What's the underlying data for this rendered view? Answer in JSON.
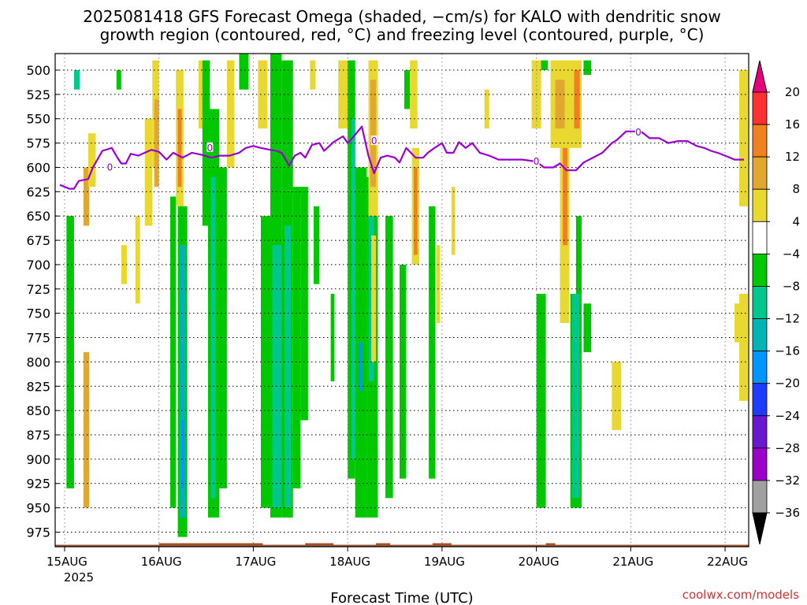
{
  "chart_data": {
    "type": "heatmap",
    "title_line1": "2025081418 GFS Forecast Omega (shaded, −cm/s) for KALO with dendritic snow",
    "title_line2": "growth region (contoured, red, °C) and freezing level (contoured, purple, °C)",
    "xlabel": "Forecast Time (UTC)",
    "credit": "coolwx.com/models",
    "year_label": "2025",
    "y_ticks": [
      "500",
      "525",
      "550",
      "575",
      "600",
      "625",
      "650",
      "675",
      "700",
      "725",
      "750",
      "775",
      "800",
      "825",
      "850",
      "875",
      "900",
      "925",
      "950",
      "975"
    ],
    "y_values": [
      500,
      525,
      550,
      575,
      600,
      625,
      650,
      675,
      700,
      725,
      750,
      775,
      800,
      825,
      850,
      875,
      900,
      925,
      950,
      975
    ],
    "ylim": [
      483,
      990
    ],
    "y_reversed": true,
    "xlim": [
      -0.1,
      7.25
    ],
    "x_ticks": [
      {
        "label": "15AUG",
        "value": 0
      },
      {
        "label": "16AUG",
        "value": 1
      },
      {
        "label": "17AUG",
        "value": 2
      },
      {
        "label": "18AUG",
        "value": 3
      },
      {
        "label": "19AUG",
        "value": 4
      },
      {
        "label": "20AUG",
        "value": 5
      },
      {
        "label": "21AUG",
        "value": 6
      },
      {
        "label": "22AUG",
        "value": 7
      }
    ],
    "grid": "dotted",
    "colorbar": {
      "levels": [
        -36,
        -32,
        -28,
        -24,
        -20,
        -16,
        -12,
        -8,
        -4,
        4,
        8,
        12,
        16,
        20
      ],
      "labels": [
        "20",
        "16",
        "12",
        "8",
        "4",
        "−4",
        "−8",
        "−12",
        "−16",
        "−20",
        "−24",
        "−28",
        "−32",
        "−36"
      ],
      "top_color": "#e8007a",
      "bottom_color": "#000000",
      "colors_top_to_bottom": [
        "#ff3030",
        "#f08020",
        "#e0a830",
        "#e8d830",
        "#ffffff",
        "#00c800",
        "#00c88c",
        "#00b4b4",
        "#0096ff",
        "#1e3cff",
        "#6a18d0",
        "#9a00c8",
        "#a0a0a0"
      ]
    },
    "omega_regions": [
      {
        "x0": 0.02,
        "x1": 0.1,
        "y0": 650,
        "y1": 930,
        "v": -6
      },
      {
        "x0": 0.1,
        "x1": 0.16,
        "y0": 500,
        "y1": 520,
        "v": -10
      },
      {
        "x0": 0.2,
        "x1": 0.26,
        "y0": 600,
        "y1": 660,
        "v": 10
      },
      {
        "x0": 0.2,
        "x1": 0.26,
        "y0": 790,
        "y1": 950,
        "v": 10
      },
      {
        "x0": 0.25,
        "x1": 0.33,
        "y0": 565,
        "y1": 620,
        "v": 6
      },
      {
        "x0": 0.55,
        "x1": 0.6,
        "y0": 500,
        "y1": 520,
        "v": -6
      },
      {
        "x0": 0.6,
        "x1": 0.66,
        "y0": 680,
        "y1": 720,
        "v": 6
      },
      {
        "x0": 0.75,
        "x1": 0.8,
        "y0": 650,
        "y1": 740,
        "v": 5
      },
      {
        "x0": 0.85,
        "x1": 0.93,
        "y0": 550,
        "y1": 660,
        "v": 6
      },
      {
        "x0": 0.93,
        "x1": 1.0,
        "y0": 490,
        "y1": 600,
        "v": 6
      },
      {
        "x0": 0.95,
        "x1": 1.0,
        "y0": 530,
        "y1": 620,
        "v": 10
      },
      {
        "x0": 1.12,
        "x1": 1.18,
        "y0": 630,
        "y1": 950,
        "v": -6
      },
      {
        "x0": 1.18,
        "x1": 1.26,
        "y0": 500,
        "y1": 640,
        "v": 6
      },
      {
        "x0": 1.2,
        "x1": 1.24,
        "y0": 540,
        "y1": 620,
        "v": 12
      },
      {
        "x0": 1.2,
        "x1": 1.3,
        "y0": 640,
        "y1": 980,
        "v": -6
      },
      {
        "x0": 1.22,
        "x1": 1.28,
        "y0": 680,
        "y1": 960,
        "v": -14
      },
      {
        "x0": 1.24,
        "x1": 1.27,
        "y0": 860,
        "y1": 930,
        "v": -20
      },
      {
        "x0": 1.42,
        "x1": 1.46,
        "y0": 490,
        "y1": 560,
        "v": 5
      },
      {
        "x0": 1.46,
        "x1": 1.54,
        "y0": 490,
        "y1": 660,
        "v": -6
      },
      {
        "x0": 1.52,
        "x1": 1.64,
        "y0": 540,
        "y1": 960,
        "v": -6
      },
      {
        "x0": 1.55,
        "x1": 1.6,
        "y0": 610,
        "y1": 940,
        "v": -12
      },
      {
        "x0": 1.62,
        "x1": 1.72,
        "y0": 600,
        "y1": 930,
        "v": -6
      },
      {
        "x0": 1.72,
        "x1": 1.8,
        "y0": 490,
        "y1": 600,
        "v": 5
      },
      {
        "x0": 1.85,
        "x1": 1.95,
        "y0": 480,
        "y1": 520,
        "v": -6
      },
      {
        "x0": 2.05,
        "x1": 2.15,
        "y0": 490,
        "y1": 560,
        "v": 5
      },
      {
        "x0": 2.08,
        "x1": 2.18,
        "y0": 650,
        "y1": 950,
        "v": -6
      },
      {
        "x0": 2.18,
        "x1": 2.3,
        "y0": 480,
        "y1": 960,
        "v": -6
      },
      {
        "x0": 2.2,
        "x1": 2.3,
        "y0": 680,
        "y1": 950,
        "v": -12
      },
      {
        "x0": 2.3,
        "x1": 2.42,
        "y0": 490,
        "y1": 960,
        "v": -6
      },
      {
        "x0": 2.33,
        "x1": 2.4,
        "y0": 660,
        "y1": 950,
        "v": -12
      },
      {
        "x0": 2.42,
        "x1": 2.5,
        "y0": 620,
        "y1": 930,
        "v": -6
      },
      {
        "x0": 2.5,
        "x1": 2.58,
        "y0": 620,
        "y1": 860,
        "v": -6
      },
      {
        "x0": 2.6,
        "x1": 2.66,
        "y0": 490,
        "y1": 520,
        "v": 5
      },
      {
        "x0": 2.64,
        "x1": 2.7,
        "y0": 640,
        "y1": 720,
        "v": -6
      },
      {
        "x0": 2.82,
        "x1": 2.86,
        "y0": 730,
        "y1": 820,
        "v": -6
      },
      {
        "x0": 2.9,
        "x1": 3.0,
        "y0": 490,
        "y1": 560,
        "v": 6
      },
      {
        "x0": 3.0,
        "x1": 3.08,
        "y0": 490,
        "y1": 920,
        "v": -6
      },
      {
        "x0": 3.04,
        "x1": 3.08,
        "y0": 550,
        "y1": 900,
        "v": -12
      },
      {
        "x0": 3.08,
        "x1": 3.2,
        "y0": 600,
        "y1": 960,
        "v": -6
      },
      {
        "x0": 3.12,
        "x1": 3.15,
        "y0": 780,
        "y1": 830,
        "v": -20
      },
      {
        "x0": 3.2,
        "x1": 3.32,
        "y0": 610,
        "y1": 960,
        "v": -6
      },
      {
        "x0": 3.22,
        "x1": 3.28,
        "y0": 640,
        "y1": 820,
        "v": -12
      },
      {
        "x0": 3.22,
        "x1": 3.32,
        "y0": 490,
        "y1": 650,
        "v": 6
      },
      {
        "x0": 3.24,
        "x1": 3.3,
        "y0": 510,
        "y1": 620,
        "v": 10
      },
      {
        "x0": 3.25,
        "x1": 3.3,
        "y0": 670,
        "y1": 800,
        "v": 6
      },
      {
        "x0": 3.4,
        "x1": 3.48,
        "y0": 650,
        "y1": 940,
        "v": -6
      },
      {
        "x0": 3.55,
        "x1": 3.62,
        "y0": 700,
        "y1": 920,
        "v": -6
      },
      {
        "x0": 3.6,
        "x1": 3.66,
        "y0": 500,
        "y1": 540,
        "v": -6
      },
      {
        "x0": 3.66,
        "x1": 3.74,
        "y0": 490,
        "y1": 560,
        "v": 5
      },
      {
        "x0": 3.68,
        "x1": 3.76,
        "y0": 580,
        "y1": 700,
        "v": 6
      },
      {
        "x0": 3.7,
        "x1": 3.74,
        "y0": 600,
        "y1": 690,
        "v": 12
      },
      {
        "x0": 3.86,
        "x1": 3.93,
        "y0": 640,
        "y1": 920,
        "v": -6
      },
      {
        "x0": 3.94,
        "x1": 3.98,
        "y0": 680,
        "y1": 760,
        "v": 5
      },
      {
        "x0": 4.1,
        "x1": 4.14,
        "y0": 620,
        "y1": 690,
        "v": 5
      },
      {
        "x0": 4.45,
        "x1": 4.5,
        "y0": 520,
        "y1": 560,
        "v": 5
      },
      {
        "x0": 4.95,
        "x1": 5.05,
        "y0": 490,
        "y1": 560,
        "v": 6
      },
      {
        "x0": 5.05,
        "x1": 5.12,
        "y0": 490,
        "y1": 500,
        "v": -6
      },
      {
        "x0": 5.0,
        "x1": 5.1,
        "y0": 730,
        "y1": 950,
        "v": -6
      },
      {
        "x0": 5.15,
        "x1": 5.35,
        "y0": 490,
        "y1": 580,
        "v": 6
      },
      {
        "x0": 5.2,
        "x1": 5.3,
        "y0": 510,
        "y1": 560,
        "v": 10
      },
      {
        "x0": 5.25,
        "x1": 5.35,
        "y0": 560,
        "y1": 760,
        "v": 6
      },
      {
        "x0": 5.28,
        "x1": 5.33,
        "y0": 580,
        "y1": 680,
        "v": 12
      },
      {
        "x0": 5.35,
        "x1": 5.48,
        "y0": 490,
        "y1": 580,
        "v": 6
      },
      {
        "x0": 5.36,
        "x1": 5.46,
        "y0": 730,
        "y1": 950,
        "v": -6
      },
      {
        "x0": 5.4,
        "x1": 5.46,
        "y0": 500,
        "y1": 560,
        "v": 12
      },
      {
        "x0": 5.42,
        "x1": 5.48,
        "y0": 650,
        "y1": 950,
        "v": -6
      },
      {
        "x0": 5.38,
        "x1": 5.46,
        "y0": 730,
        "y1": 940,
        "v": -12
      },
      {
        "x0": 5.5,
        "x1": 5.58,
        "y0": 740,
        "y1": 790,
        "v": -6
      },
      {
        "x0": 5.5,
        "x1": 5.58,
        "y0": 490,
        "y1": 505,
        "v": -6
      },
      {
        "x0": 5.8,
        "x1": 5.9,
        "y0": 800,
        "y1": 870,
        "v": 6
      },
      {
        "x0": 7.1,
        "x1": 7.2,
        "y0": 740,
        "y1": 780,
        "v": 6
      },
      {
        "x0": 7.15,
        "x1": 7.24,
        "y0": 500,
        "y1": 640,
        "v": 6
      },
      {
        "x0": 7.15,
        "x1": 7.24,
        "y0": 730,
        "y1": 840,
        "v": 6
      }
    ],
    "freezing_level": {
      "color": "#9b00d3",
      "label": "0",
      "label_points": [
        [
          0.48,
          600
        ],
        [
          1.54,
          580
        ],
        [
          3.28,
          573
        ],
        [
          5.0,
          594
        ],
        [
          6.08,
          564
        ]
      ],
      "points": [
        [
          -0.05,
          618
        ],
        [
          0.05,
          622
        ],
        [
          0.1,
          622
        ],
        [
          0.15,
          614
        ],
        [
          0.25,
          612
        ],
        [
          0.3,
          600
        ],
        [
          0.4,
          583
        ],
        [
          0.5,
          580
        ],
        [
          0.56,
          590
        ],
        [
          0.6,
          596
        ],
        [
          0.65,
          596
        ],
        [
          0.7,
          586
        ],
        [
          0.78,
          588
        ],
        [
          0.85,
          585
        ],
        [
          0.92,
          582
        ],
        [
          1.0,
          584
        ],
        [
          1.08,
          592
        ],
        [
          1.15,
          585
        ],
        [
          1.25,
          590
        ],
        [
          1.35,
          585
        ],
        [
          1.45,
          587
        ],
        [
          1.55,
          590
        ],
        [
          1.65,
          588
        ],
        [
          1.75,
          588
        ],
        [
          1.85,
          585
        ],
        [
          1.92,
          580
        ],
        [
          2.0,
          578
        ],
        [
          2.08,
          580
        ],
        [
          2.18,
          582
        ],
        [
          2.25,
          583
        ],
        [
          2.3,
          585
        ],
        [
          2.38,
          598
        ],
        [
          2.44,
          588
        ],
        [
          2.5,
          585
        ],
        [
          2.55,
          590
        ],
        [
          2.62,
          577
        ],
        [
          2.7,
          575
        ],
        [
          2.75,
          583
        ],
        [
          2.85,
          574
        ],
        [
          2.95,
          568
        ],
        [
          3.0,
          575
        ],
        [
          3.05,
          570
        ],
        [
          3.15,
          558
        ],
        [
          3.22,
          588
        ],
        [
          3.28,
          606
        ],
        [
          3.35,
          590
        ],
        [
          3.42,
          588
        ],
        [
          3.5,
          590
        ],
        [
          3.55,
          595
        ],
        [
          3.62,
          580
        ],
        [
          3.72,
          590
        ],
        [
          3.8,
          590
        ],
        [
          3.85,
          585
        ],
        [
          3.92,
          580
        ],
        [
          4.0,
          575
        ],
        [
          4.05,
          585
        ],
        [
          4.12,
          585
        ],
        [
          4.18,
          574
        ],
        [
          4.25,
          580
        ],
        [
          4.32,
          575
        ],
        [
          4.4,
          585
        ],
        [
          4.5,
          588
        ],
        [
          4.6,
          592
        ],
        [
          4.75,
          592
        ],
        [
          4.85,
          592
        ],
        [
          5.0,
          594
        ],
        [
          5.08,
          600
        ],
        [
          5.18,
          600
        ],
        [
          5.25,
          596
        ],
        [
          5.32,
          603
        ],
        [
          5.42,
          603
        ],
        [
          5.5,
          595
        ],
        [
          5.6,
          590
        ],
        [
          5.7,
          585
        ],
        [
          5.8,
          575
        ],
        [
          5.85,
          572
        ],
        [
          5.95,
          563
        ],
        [
          6.05,
          563
        ],
        [
          6.12,
          564
        ],
        [
          6.2,
          570
        ],
        [
          6.3,
          570
        ],
        [
          6.4,
          575
        ],
        [
          6.5,
          573
        ],
        [
          6.6,
          573
        ],
        [
          6.7,
          578
        ],
        [
          6.78,
          580
        ],
        [
          6.85,
          583
        ],
        [
          6.92,
          585
        ],
        [
          7.0,
          588
        ],
        [
          7.1,
          592
        ],
        [
          7.2,
          592
        ]
      ]
    },
    "terrain": {
      "color": "#a0522d",
      "top_pressure": 988,
      "bumps": [
        [
          1.0,
          2.1
        ],
        [
          2.55,
          2.85
        ],
        [
          3.3,
          3.45
        ],
        [
          3.9,
          4.1
        ],
        [
          5.1,
          5.2
        ]
      ]
    }
  }
}
